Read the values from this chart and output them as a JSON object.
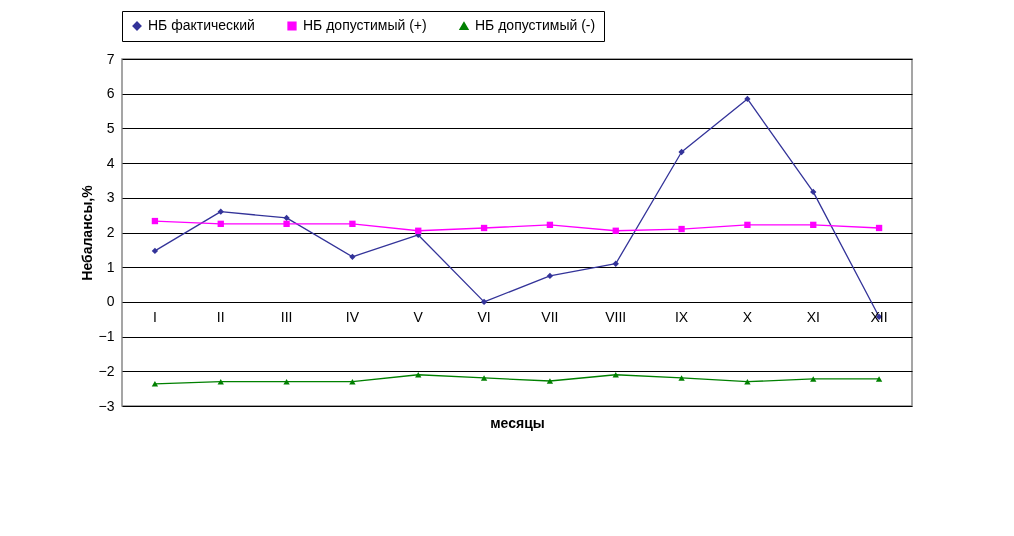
{
  "chart_data": {
    "type": "line",
    "xlabel": "месяцы",
    "ylabel": "Небалансы,%",
    "categories": [
      "I",
      "II",
      "III",
      "IV",
      "V",
      "VI",
      "VII",
      "VIII",
      "IX",
      "X",
      "XI",
      "XII"
    ],
    "series": [
      {
        "name": "НБ фактический",
        "color": "#333399",
        "marker": "diamond",
        "values": [
          1.47,
          2.6,
          2.42,
          1.3,
          1.93,
          0,
          0.75,
          1.1,
          4.32,
          5.85,
          3.17,
          -0.43
        ]
      },
      {
        "name": "НБ допустимый (+)",
        "color": "#ff00ff",
        "marker": "square",
        "values": [
          2.33,
          2.25,
          2.25,
          2.25,
          2.05,
          2.13,
          2.22,
          2.05,
          2.1,
          2.22,
          2.22,
          2.13
        ]
      },
      {
        "name": "НБ допустимый (-)",
        "color": "#008000",
        "marker": "triangle",
        "values": [
          -2.36,
          -2.3,
          -2.3,
          -2.3,
          -2.1,
          -2.19,
          -2.28,
          -2.1,
          -2.19,
          -2.3,
          -2.22,
          -2.22
        ]
      }
    ],
    "ylim": [
      -3,
      7
    ],
    "yticks": [
      -3,
      -2,
      -1,
      0,
      1,
      2,
      3,
      4,
      5,
      6,
      7
    ],
    "grid": "y",
    "legend": "top"
  }
}
